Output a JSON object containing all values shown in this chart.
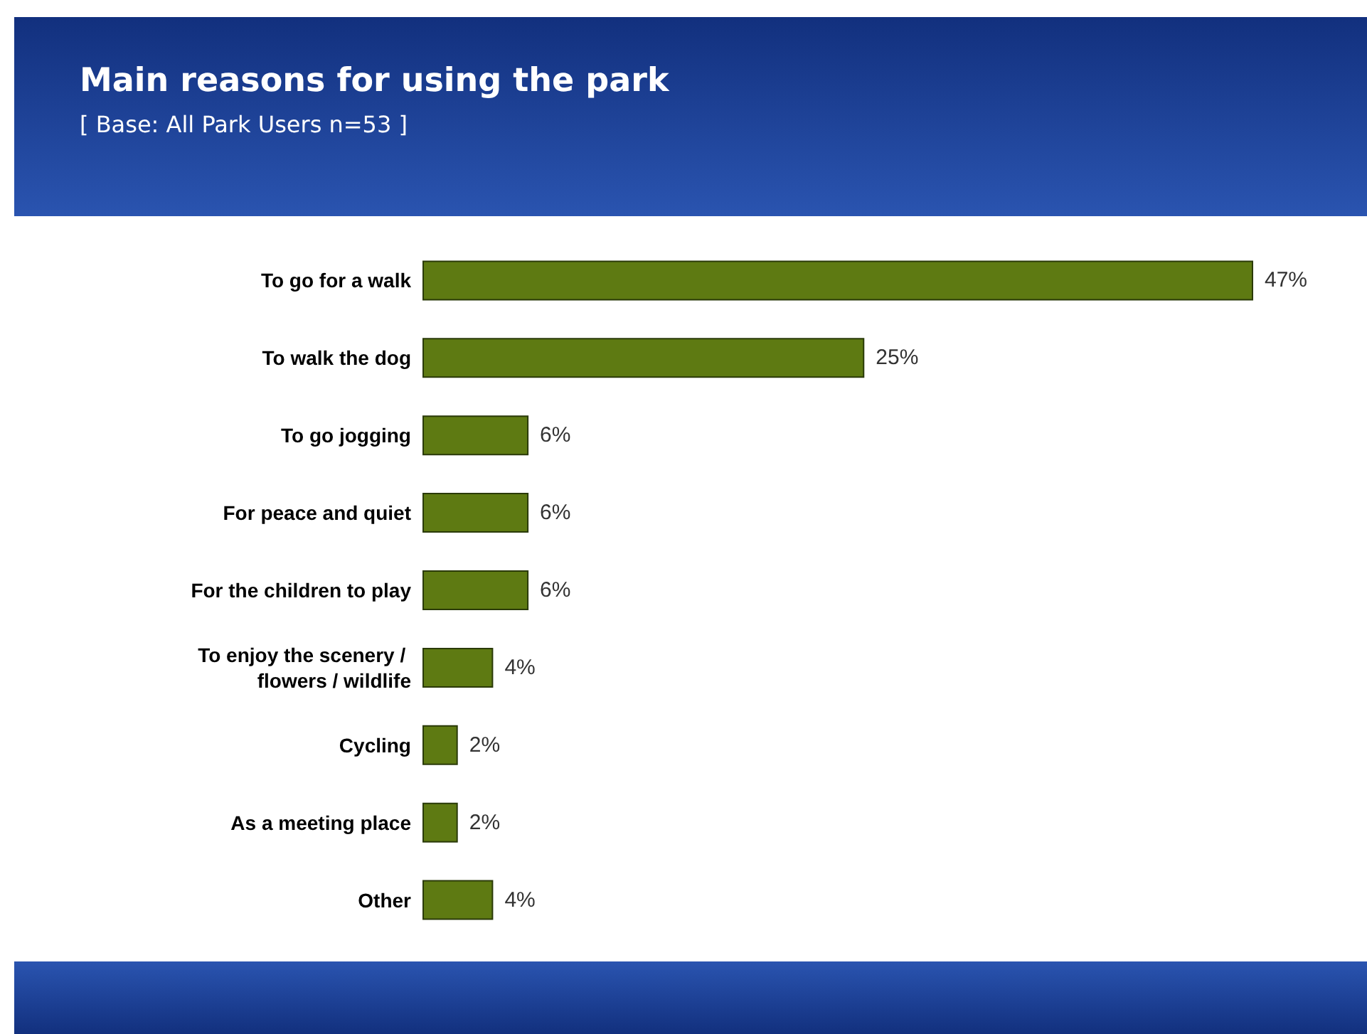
{
  "chart_data": {
    "type": "bar",
    "orientation": "horizontal",
    "title": "Main reasons for using the park",
    "subtitle": "[ Base:   All Park Users n=53 ]",
    "categories": [
      "To go for a walk",
      "To walk the dog",
      "To go jogging",
      "For peace and quiet",
      "For the children to play",
      "To enjoy the scenery / flowers / wildlife",
      "Cycling",
      "As a meeting place",
      "Other"
    ],
    "values": [
      47,
      25,
      6,
      6,
      6,
      4,
      2,
      2,
      4
    ],
    "value_labels": [
      "47%",
      "25%",
      "6%",
      "6%",
      "6%",
      "4%",
      "2%",
      "2%",
      "4%"
    ],
    "color": "#5e7a12",
    "tick_labels": "y"
  }
}
